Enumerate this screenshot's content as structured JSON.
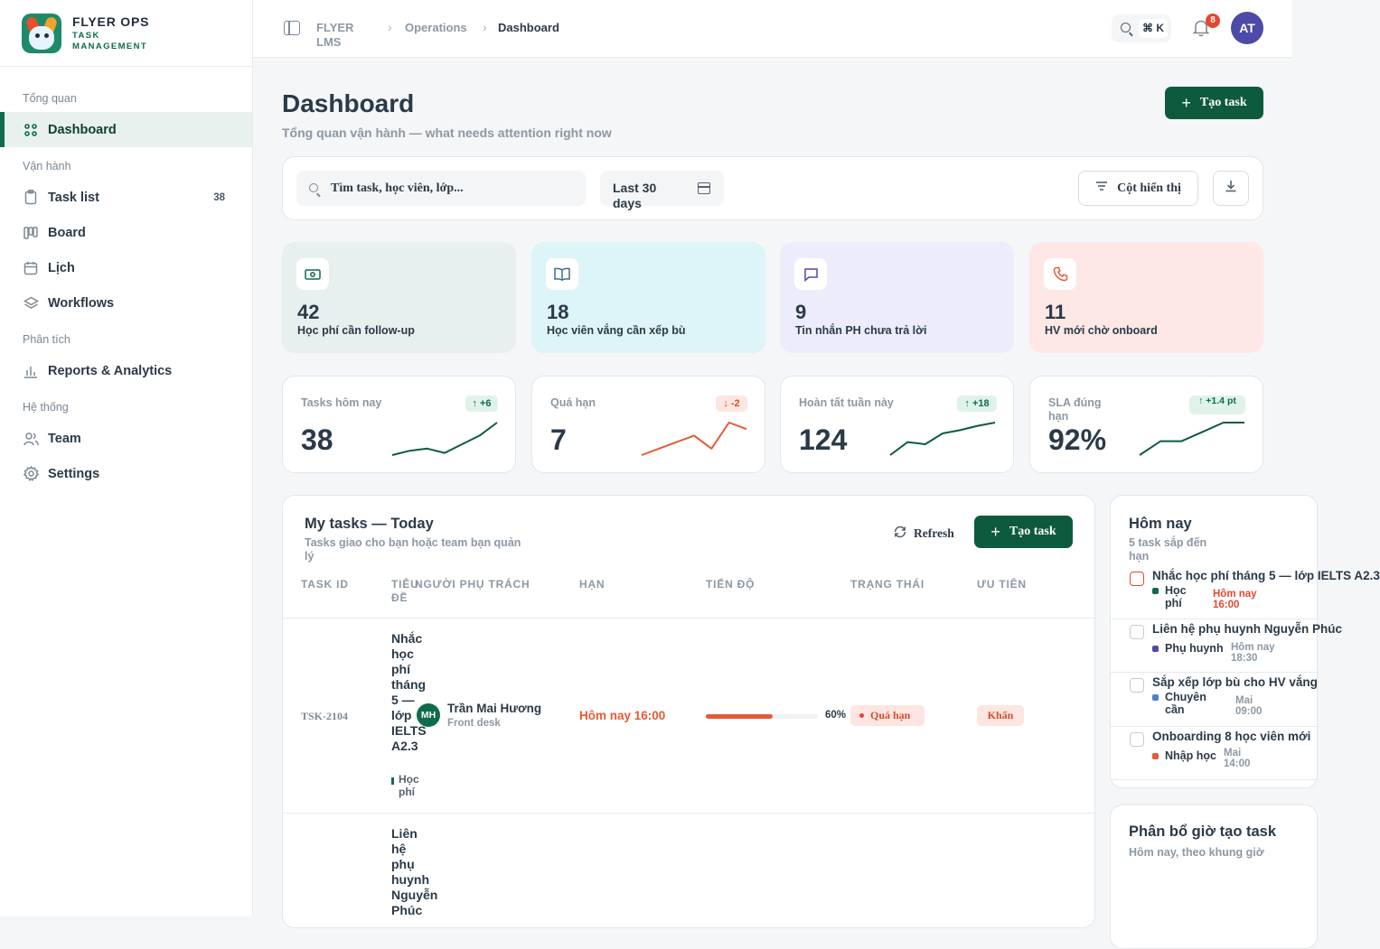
{
  "brand": {
    "title": "FLYER OPS",
    "sub1": "TASK",
    "sub2": "MANAGEMENT"
  },
  "nav": {
    "groups": [
      "Tổng quan",
      "Vận hành",
      "Phân tích",
      "Hệ thống"
    ],
    "dashboard": "Dashboard",
    "task_list": "Task list",
    "task_count": "38",
    "board": "Board",
    "calendar": "Lịch",
    "workflows": "Workflows",
    "reports": "Reports & Analytics",
    "team": "Team",
    "settings": "Settings"
  },
  "topbar": {
    "crumb_root": "FLYER LMS",
    "crumb_section": "Operations",
    "crumb_current": "Dashboard",
    "shortcut": "⌘ K",
    "notif_count": "8",
    "user_initials": "AT"
  },
  "header": {
    "title": "Dashboard",
    "subtitle": "Tổng quan vận hành — what needs attention right now",
    "create_label": "Tạo task"
  },
  "filters": {
    "search_placeholder": "Tìm task, học viên, lớp...",
    "date_range": "Last 30 days",
    "columns_label": "Cột hiển thị"
  },
  "stats": [
    {
      "value": "42",
      "label": "Học phí cần follow-up",
      "bg": "#e8f0ef",
      "icon": "money-icon"
    },
    {
      "value": "18",
      "label": "Học viên vắng cần xếp bù",
      "bg": "#ddf4f8",
      "icon": "book-icon"
    },
    {
      "value": "9",
      "label": "Tin nhắn PH chưa trả lời",
      "bg": "#ececfb",
      "icon": "chat-icon"
    },
    {
      "value": "11",
      "label": "HV mới chờ onboard",
      "bg": "#fde8e6",
      "icon": "phone-icon"
    }
  ],
  "kpis": [
    {
      "label": "Tasks hôm nay",
      "value": "38",
      "delta": "+6",
      "trend": "up",
      "spark": [
        4,
        6,
        7,
        5,
        9,
        13,
        19
      ]
    },
    {
      "label": "Quá hạn",
      "value": "7",
      "delta": "-2",
      "trend": "down",
      "spark": [
        3,
        5,
        7,
        9,
        5,
        13,
        11
      ]
    },
    {
      "label": "Hoàn tất tuần này",
      "value": "124",
      "delta": "+18",
      "trend": "up",
      "spark": [
        90,
        102,
        100,
        110,
        113,
        117,
        120
      ]
    },
    {
      "label": "SLA đúng hạn",
      "value": "92%",
      "delta": "+1.4 pt",
      "trend": "up",
      "spark": [
        85,
        88,
        88,
        90,
        92,
        92
      ]
    }
  ],
  "tasks": {
    "title": "My tasks — Today",
    "subtitle": "Tasks giao cho bạn hoặc team bạn quản lý",
    "refresh_label": "Refresh",
    "create_label": "Tạo task",
    "columns": [
      "TASK ID",
      "TIÊU ĐỀ",
      "NGƯỜI PHỤ TRÁCH",
      "HẠN",
      "TIẾN ĐỘ",
      "TRẠNG THÁI",
      "ƯU TIÊN"
    ],
    "rows": [
      {
        "id": "TSK-2104",
        "title": "Nhắc học phí tháng 5 — lớp IELTS A2.3",
        "tag": "Học phí",
        "initials": "MH",
        "assignee": "Trần Mai Hương",
        "role": "Front desk",
        "due": "Hôm nay 16:00",
        "progress": 60,
        "progress_label": "60%",
        "status": "Quá hạn",
        "priority": "Khẩn"
      },
      {
        "title": "Liên hệ phụ huynh Nguyễn Phúc"
      }
    ]
  },
  "today": {
    "title": "Hôm nay",
    "subtitle": "5 task sắp đến hạn",
    "items": [
      {
        "title": "Nhắc học phí tháng 5 — lớp IELTS A2.3",
        "cat": "Học phí",
        "time": "Hôm nay 16:00",
        "color": "#0e6b4d",
        "overdue": true
      },
      {
        "title": "Liên hệ phụ huynh Nguyễn Phúc",
        "cat": "Phụ huynh",
        "time": "Hôm nay 18:30",
        "color": "#4d4aa8",
        "overdue": false
      },
      {
        "title": "Sắp xếp lớp bù cho HV vắng",
        "cat": "Chuyên cần",
        "time": "Mai 09:00",
        "color": "#4e7fd1",
        "overdue": false
      },
      {
        "title": "Onboarding 8 học viên mới",
        "cat": "Nhập học",
        "time": "Mai 14:00",
        "color": "#e55a35",
        "overdue": false
      }
    ]
  },
  "distribution": {
    "title": "Phân bổ giờ tạo task",
    "subtitle": "Hôm nay, theo khung giờ"
  },
  "colors": {
    "primary": "#0e5a3f",
    "danger": "#e55a35",
    "accent": "#4d4aa8"
  }
}
